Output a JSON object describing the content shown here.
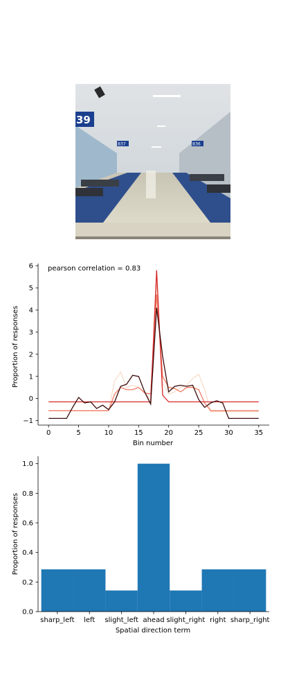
{
  "photo": {
    "gate_sign": "39",
    "gate_label_left": "B37",
    "gate_label_right": "B36"
  },
  "colors": {
    "bar": "#1f77b4",
    "series": [
      "#f5d0b5",
      "#f07a60",
      "#d62728",
      "#3b0a0a"
    ]
  },
  "chart_data": [
    {
      "type": "line",
      "annotation": "pearson correlation = 0.83",
      "xlabel": "Bin number",
      "ylabel": "Proportion of responses",
      "xlim": [
        -1.75,
        36.75
      ],
      "ylim": [
        -1.2,
        6.1
      ],
      "xticks": [
        0,
        5,
        10,
        15,
        20,
        25,
        30,
        35
      ],
      "yticks": [
        -1,
        0,
        1,
        2,
        3,
        4,
        5,
        6
      ],
      "series": [
        {
          "color": "#f5d0b5",
          "x": [
            0,
            1,
            2,
            3,
            4,
            5,
            6,
            7,
            8,
            9,
            10,
            11,
            12,
            13,
            14,
            15,
            16,
            17,
            18,
            19,
            20,
            21,
            22,
            23,
            24,
            25,
            26,
            27,
            28,
            29,
            30,
            31,
            32,
            33,
            34,
            35
          ],
          "y": [
            -0.55,
            -0.55,
            -0.55,
            -0.55,
            -0.55,
            -0.55,
            -0.55,
            -0.55,
            -0.55,
            -0.55,
            -0.55,
            0.8,
            1.2,
            0.5,
            0.6,
            0.5,
            0.3,
            -0.1,
            5.2,
            0.7,
            0.2,
            0.3,
            0.5,
            0.6,
            0.9,
            1.1,
            0.4,
            -0.6,
            -0.6,
            -0.6,
            -0.6,
            -0.6,
            -0.6,
            -0.6,
            -0.6,
            -0.6
          ]
        },
        {
          "color": "#f07a60",
          "x": [
            0,
            1,
            2,
            3,
            4,
            5,
            6,
            7,
            8,
            9,
            10,
            11,
            12,
            13,
            14,
            15,
            16,
            17,
            18,
            19,
            20,
            21,
            22,
            23,
            24,
            25,
            26,
            27,
            28,
            29,
            30,
            31,
            32,
            33,
            34,
            35
          ],
          "y": [
            -0.55,
            -0.55,
            -0.55,
            -0.55,
            -0.55,
            -0.55,
            -0.55,
            -0.55,
            -0.55,
            -0.55,
            -0.55,
            0.2,
            0.5,
            0.4,
            0.4,
            0.5,
            0.25,
            0.2,
            4.7,
            1.0,
            0.5,
            0.45,
            0.3,
            0.5,
            0.5,
            0.4,
            -0.2,
            -0.55,
            -0.55,
            -0.55,
            -0.55,
            -0.55,
            -0.55,
            -0.55,
            -0.55,
            -0.55
          ]
        },
        {
          "color": "#d62728",
          "x": [
            0,
            1,
            2,
            3,
            4,
            5,
            6,
            7,
            8,
            9,
            10,
            11,
            12,
            13,
            14,
            15,
            16,
            17,
            18,
            19,
            20,
            21,
            22,
            23,
            24,
            25,
            26,
            27,
            28,
            29,
            30,
            31,
            32,
            33,
            34,
            35
          ],
          "y": [
            -0.15,
            -0.15,
            -0.15,
            -0.15,
            -0.15,
            -0.15,
            -0.15,
            -0.15,
            -0.15,
            -0.15,
            -0.15,
            -0.15,
            -0.15,
            -0.15,
            -0.15,
            -0.15,
            -0.15,
            -0.15,
            5.8,
            0.15,
            -0.15,
            -0.15,
            -0.15,
            -0.15,
            -0.15,
            -0.15,
            -0.15,
            -0.15,
            -0.15,
            -0.15,
            -0.15,
            -0.15,
            -0.15,
            -0.15,
            -0.15,
            -0.15
          ]
        },
        {
          "color": "#3b0a0a",
          "x": [
            0,
            1,
            2,
            3,
            4,
            5,
            6,
            7,
            8,
            9,
            10,
            11,
            12,
            13,
            14,
            15,
            16,
            17,
            18,
            19,
            20,
            21,
            22,
            23,
            24,
            25,
            26,
            27,
            28,
            29,
            30,
            31,
            32,
            33,
            34,
            35
          ],
          "y": [
            -0.9,
            -0.9,
            -0.9,
            -0.9,
            -0.4,
            0.05,
            -0.2,
            -0.15,
            -0.45,
            -0.3,
            -0.5,
            -0.15,
            0.55,
            0.65,
            1.05,
            1.0,
            0.3,
            -0.25,
            4.1,
            1.9,
            0.3,
            0.55,
            0.6,
            0.55,
            0.6,
            -0.05,
            -0.4,
            -0.2,
            -0.1,
            -0.2,
            -0.9,
            -0.9,
            -0.9,
            -0.9,
            -0.9,
            -0.9
          ]
        }
      ]
    },
    {
      "type": "bar",
      "xlabel": "Spatial direction term",
      "ylabel": "Proportion of responses",
      "ylim": [
        0,
        1.05
      ],
      "yticks": [
        0.0,
        0.2,
        0.4,
        0.6,
        0.8,
        1.0
      ],
      "categories": [
        "sharp_left",
        "left",
        "slight_left",
        "ahead",
        "slight_right",
        "right",
        "sharp_right"
      ],
      "values": [
        0.2857,
        0.2857,
        0.1429,
        1.0,
        0.1429,
        0.2857,
        0.2857
      ]
    }
  ]
}
